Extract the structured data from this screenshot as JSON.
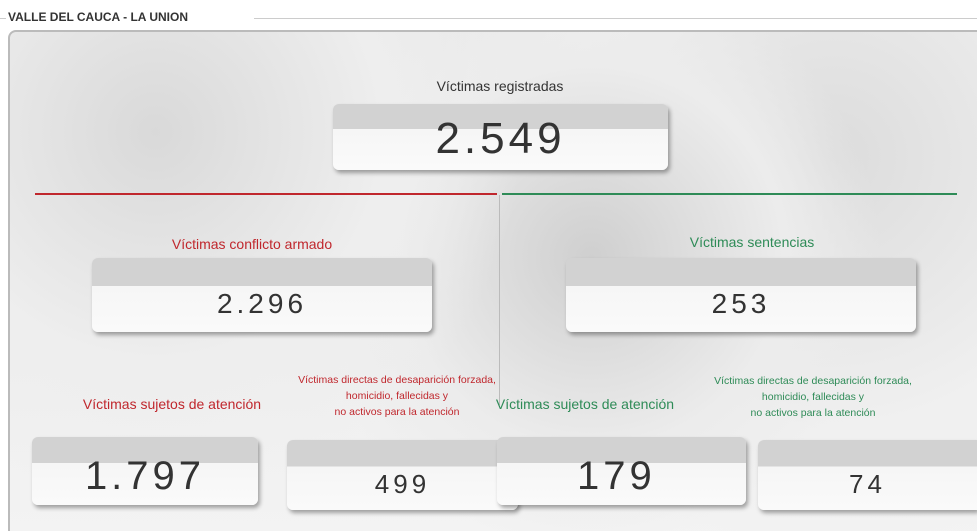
{
  "header": {
    "title": "VALLE DEL CAUCA - LA UNION"
  },
  "total": {
    "label": "Víctimas registradas",
    "value": "2.549"
  },
  "left": {
    "label": "Víctimas conflicto armado",
    "value": "2.296",
    "subject": {
      "label": "Víctimas sujetos de atención",
      "value": "1.797"
    },
    "inactive": {
      "lines": [
        "Víctimas directas de desaparición forzada,",
        "homicidio, fallecidas y",
        "no activos para la atención"
      ],
      "value": "499"
    }
  },
  "right": {
    "label": "Víctimas sentencias",
    "value": "253",
    "subject": {
      "label": "Víctimas sujetos de atención",
      "value": "179"
    },
    "inactive": {
      "lines": [
        "Víctimas directas de desaparición forzada,",
        "homicidio, fallecidas y",
        "no activos para la atención"
      ],
      "value": "74"
    }
  }
}
